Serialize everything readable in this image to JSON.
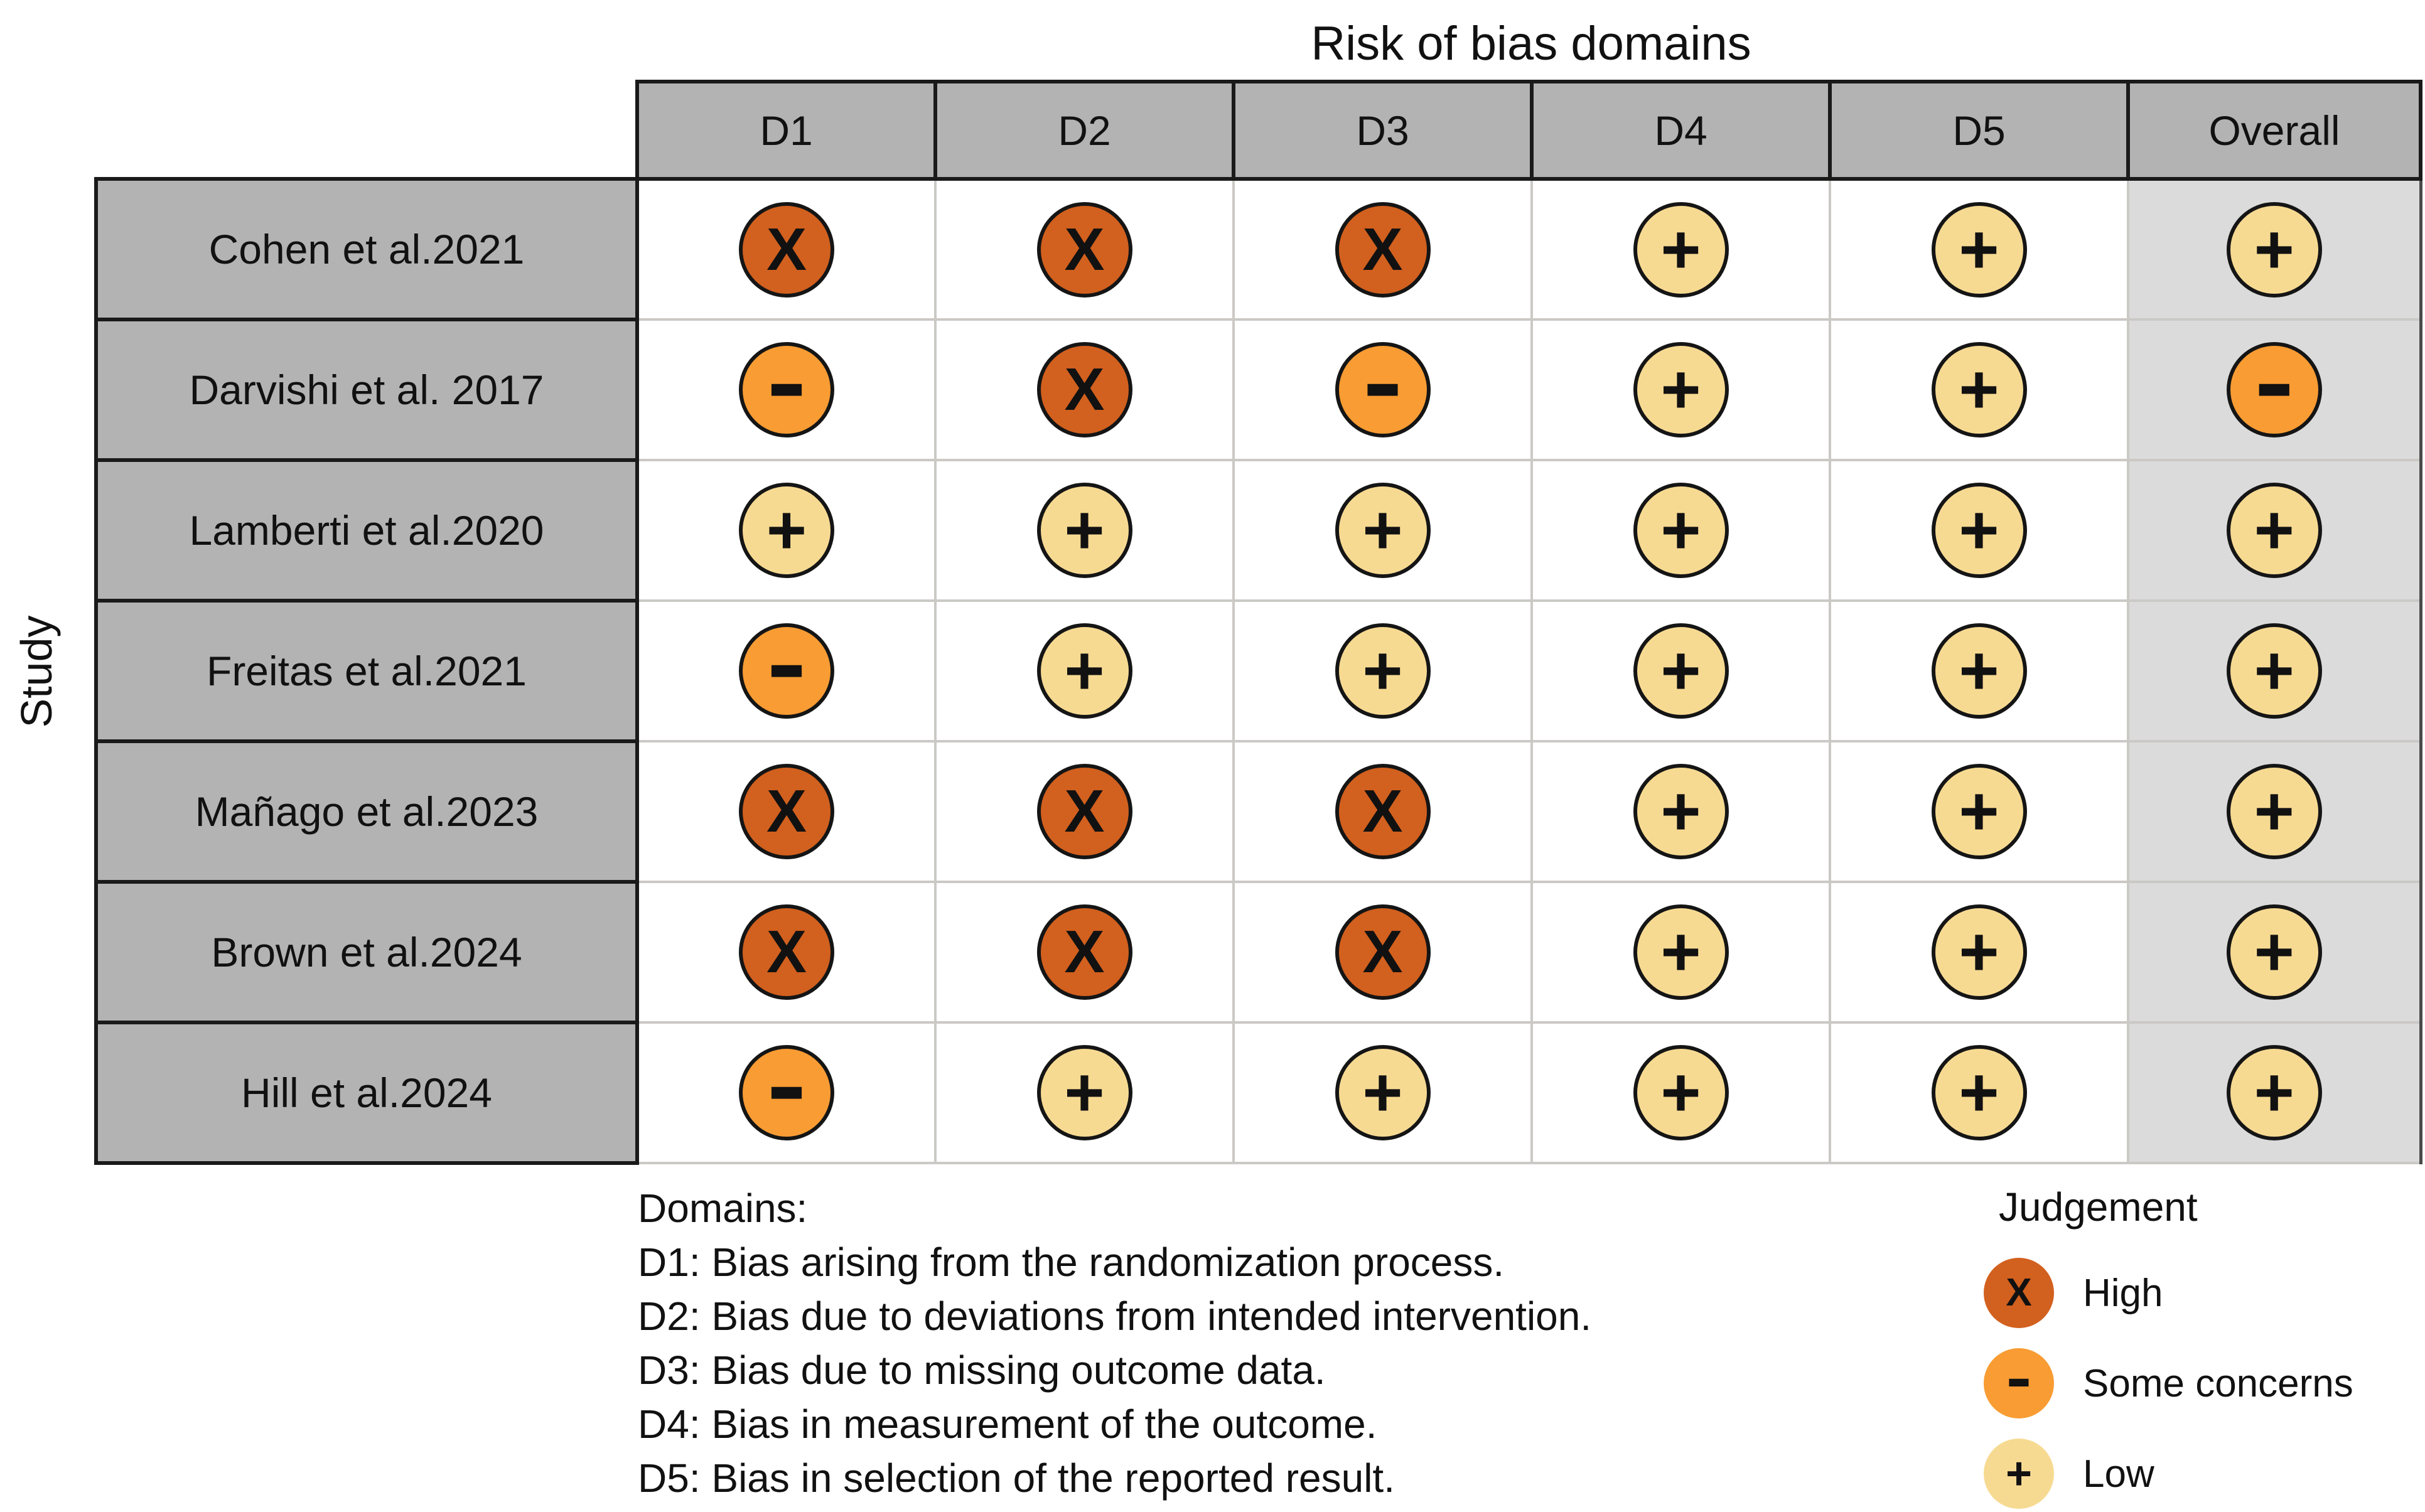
{
  "figure_title": "Risk of bias domains",
  "y_axis_label": "Study",
  "colors": {
    "high": "#D2601E",
    "concerns": "#F89C33",
    "low": "#F7DA92",
    "header_bg": "#B3B3B3",
    "overall_bg": "#DBDBDB",
    "grid": "#CBC9C5",
    "border": "#1A1A1A"
  },
  "judgements": {
    "High": {
      "key": "high",
      "symbol": "X",
      "color": "#D2601E"
    },
    "Some concerns": {
      "key": "concerns",
      "symbol": "−",
      "color": "#F89C33"
    },
    "Low": {
      "key": "low",
      "symbol": "+",
      "color": "#F7DA92"
    }
  },
  "chart_data": {
    "type": "heatmap",
    "title": "Risk of bias domains",
    "ylabel": "Study",
    "columns": [
      "D1",
      "D2",
      "D3",
      "D4",
      "D5",
      "Overall"
    ],
    "rows": [
      "Cohen et al.2021",
      "Darvishi et al. 2017",
      "Lamberti et al.2020",
      "Freitas et al.2021",
      "Mañago et al.2023",
      "Brown et al.2024",
      "Hill et al.2024"
    ],
    "values": [
      [
        "High",
        "High",
        "High",
        "Low",
        "Low",
        "Low"
      ],
      [
        "Some concerns",
        "High",
        "Some concerns",
        "Low",
        "Low",
        "Some concerns"
      ],
      [
        "Low",
        "Low",
        "Low",
        "Low",
        "Low",
        "Low"
      ],
      [
        "Some concerns",
        "Low",
        "Low",
        "Low",
        "Low",
        "Low"
      ],
      [
        "High",
        "High",
        "High",
        "Low",
        "Low",
        "Low"
      ],
      [
        "High",
        "High",
        "High",
        "Low",
        "Low",
        "Low"
      ],
      [
        "Some concerns",
        "Low",
        "Low",
        "Low",
        "Low",
        "Low"
      ]
    ],
    "legend_position": "bottom-right",
    "grid": true
  },
  "legend": {
    "title": "Judgement",
    "items": [
      {
        "label": "High"
      },
      {
        "label": "Some concerns"
      },
      {
        "label": "Low"
      }
    ]
  },
  "footnotes": {
    "heading": "Domains:",
    "lines": [
      "D1: Bias arising from the randomization process.",
      "D2: Bias due to deviations from intended intervention.",
      "D3: Bias due to missing outcome data.",
      "D4: Bias in measurement of the outcome.",
      "D5: Bias in selection of the reported result."
    ]
  }
}
